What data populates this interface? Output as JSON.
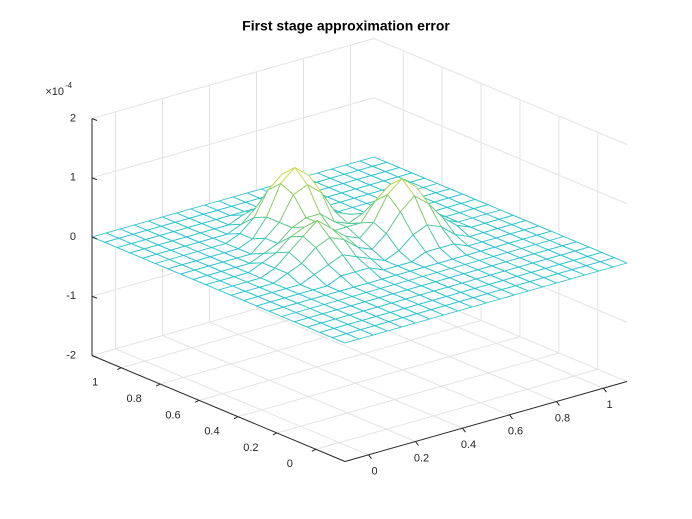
{
  "chart_data": {
    "type": "mesh",
    "title": "First stage approximation error",
    "x": [
      -0.1,
      -0.04,
      0.02,
      0.08,
      0.14,
      0.2,
      0.26,
      0.32,
      0.38,
      0.44,
      0.5,
      0.56,
      0.62,
      0.68,
      0.74,
      0.8,
      0.86,
      0.92,
      0.98,
      1.04,
      1.1
    ],
    "y": [
      -0.15,
      -0.085,
      -0.02,
      0.045,
      0.11,
      0.175,
      0.24,
      0.305,
      0.37,
      0.435,
      0.5,
      0.565,
      0.63,
      0.695,
      0.76,
      0.825,
      0.89,
      0.955,
      1.02,
      1.085,
      1.15
    ],
    "z": [
      [
        0,
        0,
        0,
        0,
        0,
        0,
        0,
        0,
        0,
        0,
        0,
        0,
        0,
        0,
        0,
        0,
        0,
        0,
        0,
        0,
        0
      ],
      [
        0,
        0,
        0,
        0,
        0,
        0,
        0,
        0,
        0,
        0,
        0,
        0,
        0,
        0,
        0,
        0,
        0,
        0,
        0,
        0,
        0
      ],
      [
        0,
        0,
        0,
        0,
        0,
        0,
        0,
        0,
        0,
        0,
        0,
        0,
        0,
        0,
        0,
        0,
        0,
        0,
        0,
        0,
        0
      ],
      [
        0,
        0,
        0,
        0,
        0,
        0,
        0,
        0,
        0,
        0,
        0,
        0,
        0,
        0,
        0,
        0,
        0,
        0,
        0,
        0,
        0
      ],
      [
        0,
        0,
        0,
        0,
        0,
        0,
        0,
        0,
        0,
        0,
        0,
        0,
        0,
        0,
        0,
        0,
        0,
        0,
        0,
        0,
        0
      ],
      [
        0,
        0,
        0,
        0,
        0,
        0,
        0,
        0,
        0,
        0,
        0,
        0,
        0,
        0,
        0,
        0,
        0,
        0,
        0,
        0,
        0
      ],
      [
        0,
        0,
        0,
        0,
        0,
        0,
        0,
        0,
        0,
        0,
        0,
        0,
        0,
        0,
        0,
        0,
        0,
        0,
        0,
        0,
        0
      ],
      [
        0,
        0,
        0,
        0,
        0,
        0,
        0.1,
        0.1,
        0.1,
        0,
        0,
        0,
        0.1,
        0.1,
        0.1,
        0,
        0,
        0,
        0,
        0,
        0
      ],
      [
        0,
        0,
        0,
        0,
        0,
        0.1,
        0.2,
        0.3,
        0.2,
        0.1,
        0,
        0.1,
        0.3,
        0.4,
        0.3,
        0.1,
        0,
        0,
        0,
        0,
        0
      ],
      [
        0,
        0,
        0,
        0,
        0.1,
        0.2,
        0.4,
        0.5,
        0.4,
        0.2,
        0.1,
        0.3,
        0.6,
        0.8,
        0.6,
        0.3,
        0.1,
        0,
        0,
        0,
        0
      ],
      [
        0,
        0,
        0,
        0,
        0.1,
        0.3,
        0.5,
        0.7,
        0.5,
        0.3,
        0.2,
        0.4,
        0.8,
        1,
        0.8,
        0.4,
        0.1,
        0,
        0,
        0,
        0
      ],
      [
        0,
        0,
        0,
        0,
        0.1,
        0.2,
        0.4,
        0.5,
        0.5,
        0.3,
        0.3,
        0.3,
        0.6,
        0.8,
        0.6,
        0.3,
        0.1,
        0,
        0,
        0,
        0
      ],
      [
        0,
        0,
        0,
        0,
        0,
        0.1,
        0.2,
        0.4,
        0.5,
        0.5,
        0.3,
        0.2,
        0.3,
        0.4,
        0.3,
        0.1,
        0,
        0,
        0,
        0,
        0
      ],
      [
        0,
        0,
        0,
        0,
        0,
        0,
        0.2,
        0.4,
        0.8,
        0.9,
        0.7,
        0.3,
        0.2,
        0.1,
        0.1,
        0,
        0,
        0,
        0,
        0,
        0
      ],
      [
        0,
        0,
        0,
        0,
        0,
        0,
        0.1,
        0.4,
        0.9,
        1.1,
        0.9,
        0.4,
        0.1,
        0,
        0,
        0,
        0,
        0,
        0,
        0,
        0
      ],
      [
        0,
        0,
        0,
        0,
        0,
        0,
        0.1,
        0.3,
        0.7,
        0.9,
        0.7,
        0.3,
        0.1,
        0,
        0,
        0,
        0,
        0,
        0,
        0,
        0
      ],
      [
        0,
        0,
        0,
        0,
        0,
        0,
        0,
        0.1,
        0.3,
        0.4,
        0.3,
        0.1,
        0,
        0,
        0,
        0,
        0,
        0,
        0,
        0,
        0
      ],
      [
        0,
        0,
        0,
        0,
        0,
        0,
        0,
        0,
        0.1,
        0.1,
        0.1,
        0,
        0,
        0,
        0,
        0,
        0,
        0,
        0,
        0,
        0
      ],
      [
        0,
        0,
        0,
        0,
        0,
        0,
        0,
        0,
        0,
        0,
        0,
        0,
        0,
        0,
        0,
        0,
        0,
        0,
        0,
        0,
        0
      ],
      [
        0,
        0,
        0,
        0,
        0,
        0,
        0,
        0,
        0,
        0,
        0,
        0,
        0,
        0,
        0,
        0,
        0,
        0,
        0,
        0,
        0
      ],
      [
        0,
        0,
        0,
        0,
        0,
        0,
        0,
        0,
        0,
        0,
        0,
        0,
        0,
        0,
        0,
        0,
        0,
        0,
        0,
        0,
        0
      ]
    ],
    "xlim": [
      -0.1,
      1.1
    ],
    "ylim": [
      -0.15,
      1.15
    ],
    "zlim": [
      -2,
      2
    ],
    "xticks": [
      0,
      0.2,
      0.4,
      0.6,
      0.8,
      1
    ],
    "yticks": [
      0,
      0.2,
      0.4,
      0.6,
      0.8,
      1
    ],
    "zticks": [
      -2,
      -1,
      0,
      1,
      2
    ],
    "zlabel_multiplier": {
      "base": "×10",
      "exponent": "-4"
    },
    "grid": true
  }
}
